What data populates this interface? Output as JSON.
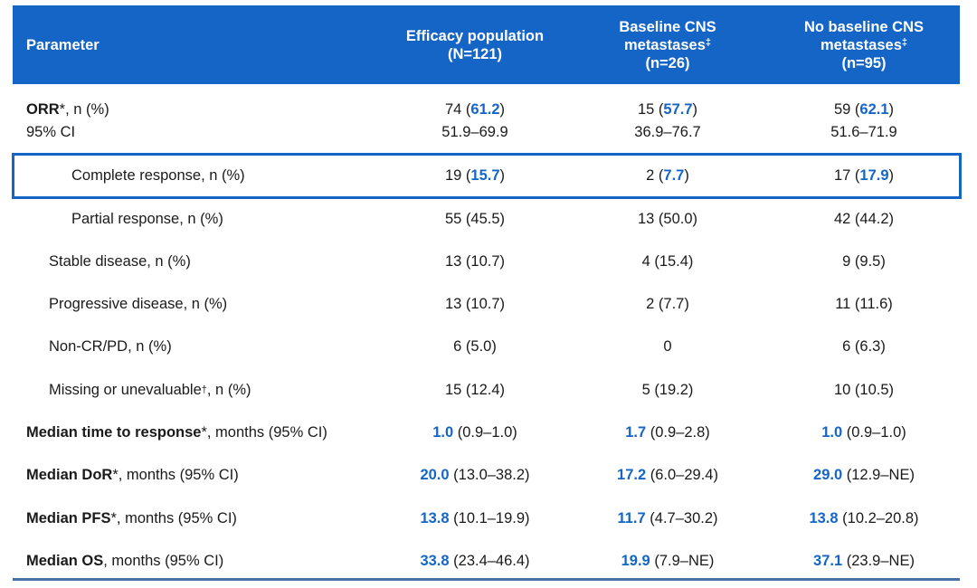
{
  "header": {
    "parameter": "Parameter",
    "col1_line1": "Efficacy population",
    "col1_line2": "(N=121)",
    "col2_line1": "Baseline CNS",
    "col2_line2": "metastases",
    "col2_mark": "‡",
    "col2_line3": "(n=26)",
    "col3_line1": "No baseline CNS",
    "col3_line2": "metastases",
    "col3_mark": "‡",
    "col3_line3": "(n=95)"
  },
  "orr": {
    "label_bold": "ORR",
    "label_rest": "*, n (%)",
    "ci_label": "95% CI",
    "col1": {
      "n": "74 (",
      "pct": "61.2",
      "close": ")",
      "ci": "51.9–69.9"
    },
    "col2": {
      "n": "15 (",
      "pct": "57.7",
      "close": ")",
      "ci": "36.9–76.7"
    },
    "col3": {
      "n": "59 (",
      "pct": "62.1",
      "close": ")",
      "ci": "51.6–71.9"
    }
  },
  "cr": {
    "label": "Complete response, n (%)",
    "col1": {
      "n": "19 (",
      "pct": "15.7",
      "close": ")"
    },
    "col2": {
      "n": "2 (",
      "pct": "7.7",
      "close": ")"
    },
    "col3": {
      "n": "17 (",
      "pct": "17.9",
      "close": ")"
    }
  },
  "rows": [
    {
      "label": "Partial response, n (%)",
      "col1": "55 (45.5)",
      "col2": "13 (50.0)",
      "col3": "42 (44.2)"
    },
    {
      "label": "Stable disease, n (%)",
      "col1": "13 (10.7)",
      "col2": "4 (15.4)",
      "col3": "9 (9.5)"
    },
    {
      "label": "Progressive disease, n (%)",
      "col1": "13 (10.7)",
      "col2": "2 (7.7)",
      "col3": "11 (11.6)"
    },
    {
      "label": "Non-CR/PD, n (%)",
      "col1": "6 (5.0)",
      "col2": "0",
      "col3": "6 (6.3)"
    }
  ],
  "missing": {
    "label_a": "Missing or unevaluable",
    "mark": "†",
    "label_b": ", n (%)",
    "col1": "15 (12.4)",
    "col2": "5 (19.2)",
    "col3": "10 (10.5)"
  },
  "medians": [
    {
      "bold": "Median time to response",
      "rest": "*, months (95% CI)",
      "col1": {
        "v": "1.0",
        "ci": " (0.9–1.0)"
      },
      "col2": {
        "v": "1.7",
        "ci": " (0.9–2.8)"
      },
      "col3": {
        "v": "1.0",
        "ci": " (0.9–1.0)"
      }
    },
    {
      "bold": "Median DoR",
      "rest": "*, months (95% CI)",
      "col1": {
        "v": "20.0",
        "ci": " (13.0–38.2)"
      },
      "col2": {
        "v": "17.2",
        "ci": " (6.0–29.4)"
      },
      "col3": {
        "v": "29.0",
        "ci": " (12.9–NE)"
      }
    },
    {
      "bold": "Median PFS",
      "rest": "*, months (95% CI)",
      "col1": {
        "v": "13.8",
        "ci": " (10.1–19.9)"
      },
      "col2": {
        "v": "11.7",
        "ci": " (4.7–30.2)"
      },
      "col3": {
        "v": "13.8",
        "ci": " (10.2–20.8)"
      }
    },
    {
      "bold": "Median OS",
      "rest": ", months (95% CI)",
      "col1": {
        "v": "33.8",
        "ci": " (23.4–46.4)"
      },
      "col2": {
        "v": "19.9",
        "ci": " (7.9–NE)"
      },
      "col3": {
        "v": "37.1",
        "ci": " (23.9–NE)"
      }
    }
  ],
  "colors": {
    "header_bg": "#1565c7",
    "accent": "#1565c7",
    "rule": "#4a6fa5"
  }
}
